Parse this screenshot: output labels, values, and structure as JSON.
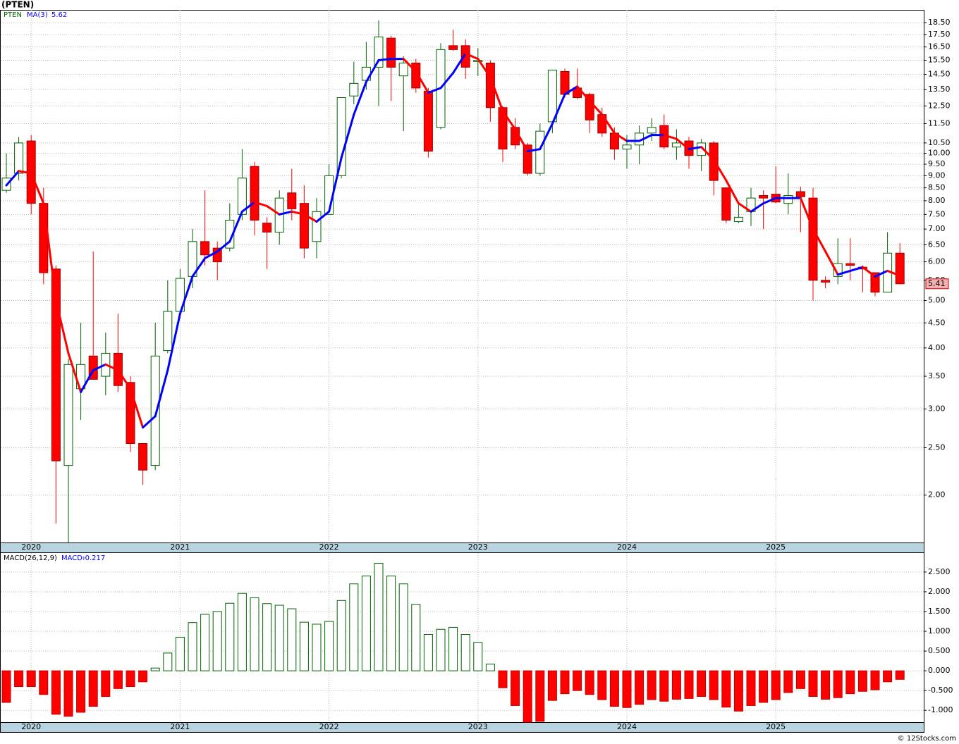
{
  "title": "(PTEN)",
  "footer": "© 12Stocks.com",
  "chart_data": [
    {
      "type": "candlestick",
      "symbol": "PTEN",
      "log_scale": true,
      "grid": true,
      "categories": [
        null,
        null,
        "2020",
        null,
        null,
        null,
        null,
        null,
        null,
        null,
        null,
        null,
        null,
        null,
        "2021",
        null,
        null,
        null,
        null,
        null,
        null,
        null,
        null,
        null,
        null,
        null,
        "2022",
        null,
        null,
        null,
        null,
        null,
        null,
        null,
        null,
        null,
        null,
        null,
        "2023",
        null,
        null,
        null,
        null,
        null,
        null,
        null,
        null,
        null,
        null,
        null,
        "2024",
        null,
        null,
        null,
        null,
        null,
        null,
        null,
        null,
        null,
        null,
        null,
        "2025",
        null,
        null,
        null,
        null,
        null,
        null,
        null,
        null,
        null,
        null
      ],
      "ylim": [
        1.6,
        19.65
      ],
      "yticks": [
        {
          "value": 18.5,
          "label": "18.50"
        },
        {
          "value": 17.5,
          "label": "17.50"
        },
        {
          "value": 16.5,
          "label": "16.50"
        },
        {
          "value": 15.5,
          "label": "15.50"
        },
        {
          "value": 14.5,
          "label": "14.50"
        },
        {
          "value": 13.5,
          "label": "13.50"
        },
        {
          "value": 12.5,
          "label": "12.50"
        },
        {
          "value": 11.5,
          "label": "11.50"
        },
        {
          "value": 10.5,
          "label": "10.50"
        },
        {
          "value": 10,
          "label": "10.00"
        },
        {
          "value": 9.5,
          "label": "9.50"
        },
        {
          "value": 9,
          "label": "9.00"
        },
        {
          "value": 8.5,
          "label": "8.50"
        },
        {
          "value": 8,
          "label": "8.00"
        },
        {
          "value": 7.5,
          "label": "7.50"
        },
        {
          "value": 7,
          "label": "7.00"
        },
        {
          "value": 6.5,
          "label": "6.50"
        },
        {
          "value": 6,
          "label": "6.00"
        },
        {
          "value": 5.5,
          "label": "5.50"
        },
        {
          "value": 5,
          "label": "5.00"
        },
        {
          "value": 4.5,
          "label": "4.50"
        },
        {
          "value": 4,
          "label": "4.00"
        },
        {
          "value": 3.5,
          "label": "3.50"
        },
        {
          "value": 3,
          "label": "3.00"
        },
        {
          "value": 2.5,
          "label": "2.50"
        },
        {
          "value": 2,
          "label": "2.00"
        }
      ],
      "up_color": "#006400",
      "down_color": "#ff0000",
      "open": [
        8.4,
        9.1,
        10.6,
        7.9,
        5.8,
        2.3,
        3.3,
        3.85,
        3.5,
        3.9,
        3.4,
        2.55,
        2.3,
        3.95,
        4.75,
        5.6,
        6.6,
        6.4,
        6.4,
        7.5,
        9.4,
        7.2,
        6.9,
        8.3,
        7.9,
        6.6,
        7.5,
        9.0,
        13.1,
        14.1,
        15.0,
        17.2,
        14.4,
        15.3,
        13.4,
        11.3,
        16.6,
        16.6,
        15.4,
        15.3,
        12.4,
        11.3,
        10.4,
        9.1,
        11.6,
        14.7,
        13.6,
        13.2,
        12.0,
        11.0,
        10.2,
        10.4,
        11.0,
        11.4,
        10.3,
        10.6,
        9.9,
        10.5,
        8.5,
        7.25,
        7.6,
        8.2,
        8.25,
        7.9,
        8.35,
        8.1,
        5.5,
        5.6,
        5.95,
        5.85,
        5.7,
        5.2,
        6.25
      ],
      "high": [
        10.0,
        10.8,
        10.9,
        8.5,
        5.9,
        3.8,
        4.5,
        6.3,
        4.3,
        4.7,
        3.5,
        2.55,
        4.5,
        5.5,
        5.8,
        7.0,
        8.4,
        6.6,
        7.9,
        10.2,
        9.6,
        7.4,
        8.4,
        9.3,
        8.6,
        8.1,
        9.5,
        13.0,
        15.4,
        16.9,
        18.7,
        17.4,
        15.8,
        15.6,
        13.6,
        16.8,
        17.9,
        17.1,
        16.4,
        15.5,
        12.5,
        11.8,
        10.5,
        11.5,
        14.8,
        14.9,
        14.9,
        13.3,
        12.4,
        11.3,
        10.9,
        11.4,
        11.8,
        12.0,
        11.2,
        10.8,
        10.7,
        10.6,
        8.5,
        7.9,
        8.5,
        8.4,
        9.4,
        9.1,
        8.55,
        8.5,
        5.6,
        6.7,
        6.7,
        5.9,
        5.7,
        6.9,
        6.55
      ],
      "low": [
        8.3,
        8.8,
        7.5,
        5.4,
        1.75,
        1.6,
        2.85,
        3.45,
        3.2,
        3.25,
        2.45,
        2.1,
        2.25,
        3.9,
        4.6,
        5.3,
        5.9,
        5.5,
        6.3,
        7.3,
        6.8,
        5.8,
        6.5,
        7.3,
        6.1,
        6.1,
        7.5,
        8.9,
        12.6,
        13.5,
        12.5,
        12.8,
        11.1,
        13.3,
        9.8,
        11.2,
        16.2,
        14.2,
        14.4,
        11.6,
        9.6,
        10.2,
        9.0,
        9.0,
        11.0,
        13.0,
        12.9,
        11.0,
        10.8,
        9.7,
        9.3,
        9.5,
        10.6,
        10.2,
        9.7,
        9.3,
        9.2,
        8.2,
        7.2,
        7.2,
        7.1,
        7.0,
        7.9,
        7.5,
        6.9,
        5.0,
        5.3,
        5.4,
        5.5,
        5.2,
        5.1,
        5.2,
        5.4
      ],
      "close": [
        8.9,
        10.5,
        7.9,
        5.7,
        2.35,
        3.7,
        3.7,
        3.45,
        3.9,
        3.35,
        2.55,
        2.25,
        3.85,
        4.75,
        5.55,
        6.6,
        6.2,
        6.0,
        7.3,
        8.9,
        7.3,
        6.9,
        8.1,
        7.7,
        6.4,
        7.6,
        9.0,
        13.0,
        13.9,
        15.0,
        17.3,
        15.0,
        15.3,
        13.6,
        10.1,
        16.3,
        16.3,
        15.0,
        15.5,
        12.4,
        10.2,
        10.4,
        9.1,
        11.1,
        14.8,
        13.2,
        13.0,
        11.7,
        11.0,
        10.2,
        10.4,
        11.0,
        11.3,
        10.3,
        10.5,
        9.9,
        10.5,
        8.8,
        7.3,
        7.4,
        8.1,
        8.1,
        7.95,
        8.2,
        8.15,
        5.5,
        5.45,
        5.95,
        5.9,
        5.8,
        5.2,
        6.25,
        5.41
      ],
      "ma": {
        "name": "MA(3)",
        "up_color": "#0000ff",
        "down_color": "#ff0000",
        "values": [
          8.6,
          9.2,
          9.1,
          7.9,
          5.0,
          3.9,
          3.25,
          3.6,
          3.7,
          3.6,
          3.3,
          2.75,
          2.9,
          3.6,
          4.7,
          5.6,
          6.1,
          6.3,
          6.6,
          7.6,
          7.95,
          7.8,
          7.5,
          7.6,
          7.5,
          7.25,
          7.6,
          9.8,
          12.0,
          14.0,
          15.5,
          15.6,
          15.6,
          14.7,
          13.3,
          13.6,
          14.6,
          16.0,
          15.6,
          14.3,
          12.2,
          11.2,
          10.1,
          10.2,
          11.5,
          13.2,
          13.7,
          12.8,
          12.0,
          11.0,
          10.6,
          10.6,
          10.9,
          10.9,
          10.7,
          10.2,
          10.3,
          9.7,
          8.8,
          7.9,
          7.6,
          7.9,
          8.1,
          8.1,
          8.1,
          7.0,
          6.3,
          5.65,
          5.75,
          5.85,
          5.6,
          5.75,
          5.62
        ]
      }
    },
    {
      "type": "bar",
      "title": "MACD(26,12,9)",
      "name": "MACD:",
      "grid": true,
      "up_color": "#006400",
      "down_color": "#ff0000",
      "categories": [
        null,
        null,
        "2020",
        null,
        null,
        null,
        null,
        null,
        null,
        null,
        null,
        null,
        null,
        null,
        "2021",
        null,
        null,
        null,
        null,
        null,
        null,
        null,
        null,
        null,
        null,
        null,
        "2022",
        null,
        null,
        null,
        null,
        null,
        null,
        null,
        null,
        null,
        null,
        null,
        "2023",
        null,
        null,
        null,
        null,
        null,
        null,
        null,
        null,
        null,
        null,
        null,
        "2024",
        null,
        null,
        null,
        null,
        null,
        null,
        null,
        null,
        null,
        null,
        null,
        "2025",
        null,
        null,
        null,
        null,
        null,
        null,
        null,
        null,
        null,
        null
      ],
      "ylim": [
        -1.3,
        2.98
      ],
      "yticks": [
        {
          "value": 2.5,
          "label": "2.500"
        },
        {
          "value": 2,
          "label": "2.000"
        },
        {
          "value": 1.5,
          "label": "1.500"
        },
        {
          "value": 1,
          "label": "1.000"
        },
        {
          "value": 0.5,
          "label": "0.500"
        },
        {
          "value": 0,
          "label": "0.000"
        },
        {
          "value": -0.5,
          "label": "-0.500"
        },
        {
          "value": -1,
          "label": "-1.000"
        }
      ],
      "values": [
        -0.8,
        -0.4,
        -0.4,
        -0.6,
        -1.1,
        -1.15,
        -1.05,
        -0.9,
        -0.65,
        -0.45,
        -0.4,
        -0.28,
        0.07,
        0.45,
        0.85,
        1.22,
        1.43,
        1.5,
        1.71,
        1.96,
        1.85,
        1.7,
        1.66,
        1.57,
        1.23,
        1.18,
        1.25,
        1.78,
        2.2,
        2.4,
        2.72,
        2.4,
        2.2,
        1.68,
        0.92,
        1.05,
        1.1,
        0.92,
        0.72,
        0.17,
        -0.43,
        -0.88,
        -1.3,
        -1.28,
        -0.75,
        -0.58,
        -0.5,
        -0.6,
        -0.73,
        -0.9,
        -0.93,
        -0.85,
        -0.73,
        -0.77,
        -0.72,
        -0.7,
        -0.65,
        -0.73,
        -0.92,
        -1.02,
        -0.88,
        -0.8,
        -0.73,
        -0.55,
        -0.45,
        -0.65,
        -0.72,
        -0.68,
        -0.58,
        -0.52,
        -0.48,
        -0.28,
        -0.217
      ]
    }
  ]
}
